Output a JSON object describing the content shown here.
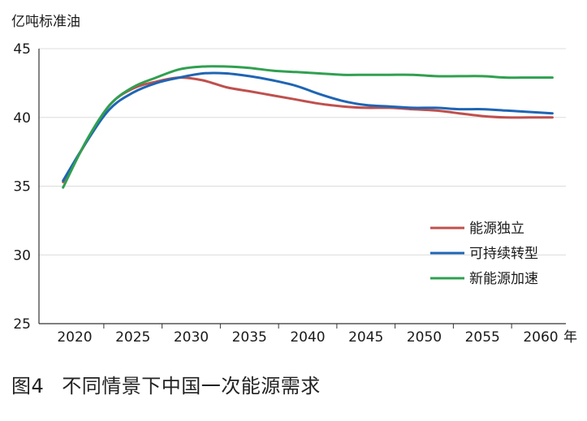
{
  "chart_data": {
    "type": "line",
    "ylabel": "亿吨标准油",
    "xunit": "年",
    "ylim": [
      25,
      45
    ],
    "yticks": [
      25,
      30,
      35,
      40,
      45
    ],
    "xticks": [
      2020,
      2025,
      2030,
      2035,
      2040,
      2045,
      2050,
      2055,
      2060
    ],
    "grid": true,
    "legend_position": "right-middle",
    "series": [
      {
        "name": "能源独立",
        "color": "#bf504d",
        "x": [
          2019,
          2021,
          2023,
          2025,
          2027,
          2029,
          2031,
          2033,
          2035,
          2037,
          2039,
          2041,
          2043,
          2045,
          2047,
          2049,
          2051,
          2053,
          2055,
          2057,
          2059,
          2061
        ],
        "values": [
          35.3,
          38.2,
          40.9,
          42.1,
          42.6,
          42.9,
          42.7,
          42.2,
          41.9,
          41.6,
          41.3,
          41.0,
          40.8,
          40.7,
          40.7,
          40.6,
          40.5,
          40.3,
          40.1,
          40.0,
          40.0,
          40.0
        ]
      },
      {
        "name": "可持续转型",
        "color": "#1f65b4",
        "x": [
          2019,
          2021,
          2023,
          2025,
          2027,
          2029,
          2031,
          2033,
          2035,
          2037,
          2039,
          2041,
          2043,
          2045,
          2047,
          2049,
          2051,
          2053,
          2055,
          2057,
          2059,
          2061
        ],
        "values": [
          35.4,
          38.2,
          40.6,
          41.8,
          42.5,
          42.9,
          43.2,
          43.2,
          43.0,
          42.7,
          42.3,
          41.7,
          41.2,
          40.9,
          40.8,
          40.7,
          40.7,
          40.6,
          40.6,
          40.5,
          40.4,
          40.3
        ]
      },
      {
        "name": "新能源加速",
        "color": "#30a050",
        "x": [
          2019,
          2021,
          2023,
          2025,
          2027,
          2029,
          2031,
          2033,
          2035,
          2037,
          2039,
          2041,
          2043,
          2045,
          2047,
          2049,
          2051,
          2053,
          2055,
          2057,
          2059,
          2061
        ],
        "values": [
          34.9,
          38.3,
          40.9,
          42.2,
          42.9,
          43.5,
          43.7,
          43.7,
          43.6,
          43.4,
          43.3,
          43.2,
          43.1,
          43.1,
          43.1,
          43.1,
          43.0,
          43.0,
          43.0,
          42.9,
          42.9,
          42.9
        ]
      }
    ]
  },
  "caption": {
    "number": "图4",
    "title": "不同情景下中国一次能源需求"
  }
}
